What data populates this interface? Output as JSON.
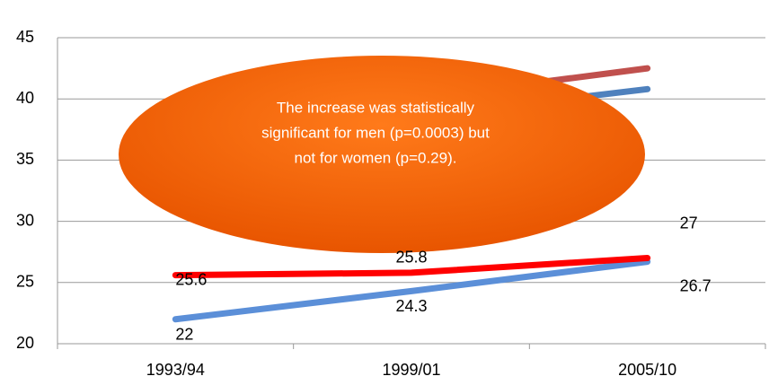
{
  "chart_data": {
    "type": "line",
    "categories": [
      "1993/94",
      "1999/01",
      "2005/10"
    ],
    "series": [
      {
        "color": "#c0504d",
        "values": [
          38,
          40,
          42.5
        ],
        "labels": false
      },
      {
        "color": "#4f81bd",
        "values": [
          37,
          38.5,
          40.8
        ],
        "labels": false
      },
      {
        "color": "#5b8fd8",
        "values": [
          22,
          24.3,
          26.7
        ],
        "labels": true,
        "label_pos": "below"
      },
      {
        "color": "#ff0000",
        "values": [
          25.6,
          25.8,
          27
        ],
        "labels": true,
        "label_pos": "above"
      }
    ],
    "ylim": [
      20,
      45
    ],
    "yticks": [
      20,
      25,
      30,
      35,
      40,
      45
    ],
    "grid": true,
    "annotation": [
      "The increase was statistically",
      "significant for men (p=0.0003) but",
      "not for women (p=0.29)."
    ]
  }
}
